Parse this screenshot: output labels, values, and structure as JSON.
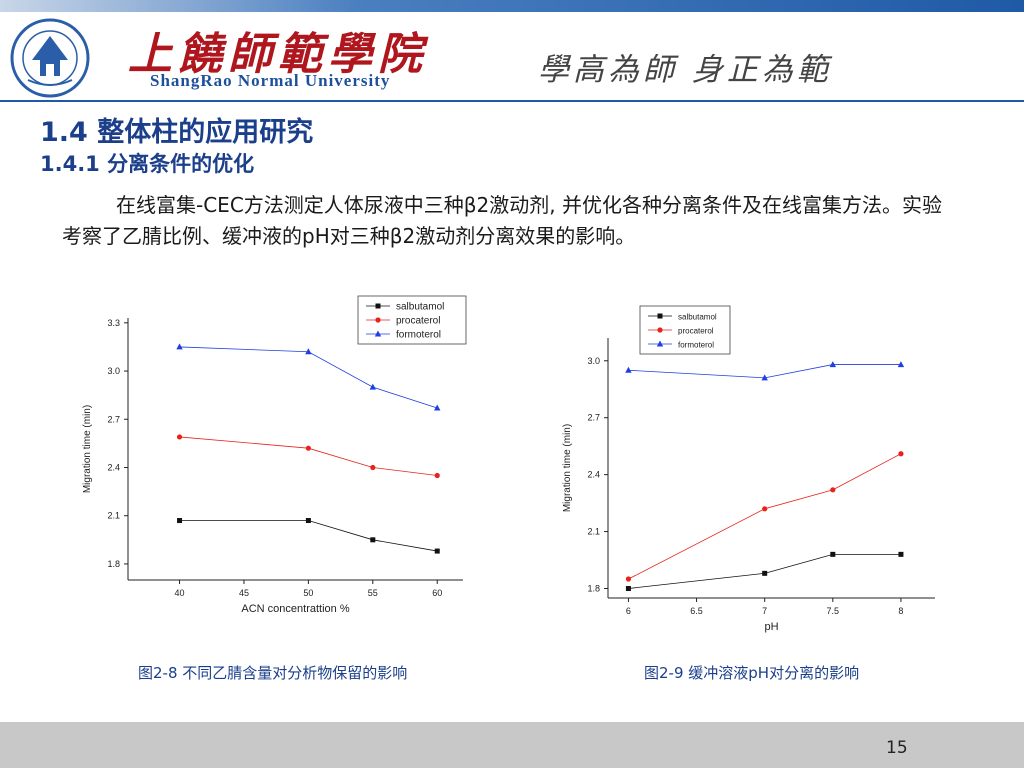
{
  "header": {
    "logo_cn": "上饒師範學院",
    "logo_en": "ShangRao Normal University",
    "motto": "學高為師 身正為範",
    "colors": {
      "accent": "#1f5aa6",
      "logo_red": "#b0161d"
    }
  },
  "slide": {
    "heading": "1.4 整体柱的应用研究",
    "subheading": "1.4.1 分离条件的优化",
    "paragraph": "在线富集-CEC方法测定人体尿液中三种β2激动剂, 并优化各种分离条件及在线富集方法。实验考察了乙腈比例、缓冲液的pH对三种β2激动剂分离效果的影响。",
    "page_number": "15"
  },
  "captions": [
    "图2-8 不同乙腈含量对分析物保留的影响",
    "图2-9 缓冲溶液pH对分离的影响"
  ],
  "chart_data": [
    {
      "type": "line",
      "x": [
        40,
        50,
        55,
        60
      ],
      "xticks": [
        40,
        45,
        50,
        55,
        60
      ],
      "yticks": [
        1.8,
        2.1,
        2.4,
        2.7,
        3.0,
        3.3
      ],
      "xlim": [
        36,
        62
      ],
      "ylim": [
        1.7,
        3.33
      ],
      "xlabel": "ACN concentrattion %",
      "ylabel": "Migration time (min)",
      "legend": "top-right",
      "series": [
        {
          "name": "salbutamol",
          "color": "#111111",
          "marker": "square",
          "values": [
            2.07,
            2.07,
            1.95,
            1.88
          ]
        },
        {
          "name": "procaterol",
          "color": "#e8231d",
          "marker": "circle",
          "values": [
            2.59,
            2.52,
            2.4,
            2.35
          ]
        },
        {
          "name": "formoterol",
          "color": "#1f3fe0",
          "marker": "triangle",
          "values": [
            3.15,
            3.12,
            2.9,
            2.77
          ]
        }
      ]
    },
    {
      "type": "line",
      "x": [
        6.0,
        7.0,
        7.5,
        8.0
      ],
      "xticks": [
        6.0,
        6.5,
        7.0,
        7.5,
        8.0
      ],
      "yticks": [
        1.8,
        2.1,
        2.4,
        2.7,
        3.0
      ],
      "xlim": [
        5.85,
        8.25
      ],
      "ylim": [
        1.75,
        3.12
      ],
      "xlabel": "pH",
      "ylabel": "Migration time (min)",
      "legend": "top-left",
      "series": [
        {
          "name": "salbutamol",
          "color": "#111111",
          "marker": "square",
          "values": [
            1.8,
            1.88,
            1.98,
            1.98
          ]
        },
        {
          "name": "procaterol",
          "color": "#e8231d",
          "marker": "circle",
          "values": [
            1.85,
            2.22,
            2.32,
            2.51
          ]
        },
        {
          "name": "formoterol",
          "color": "#1f3fe0",
          "marker": "triangle",
          "values": [
            2.95,
            2.91,
            2.98,
            2.98
          ]
        }
      ]
    }
  ]
}
